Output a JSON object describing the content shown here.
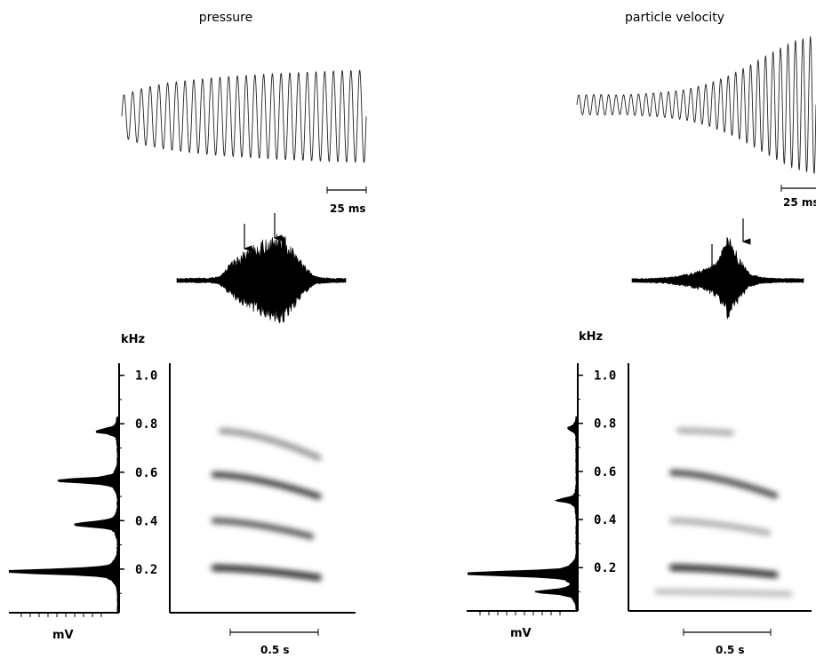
{
  "chart_data": [
    {
      "panel": "left",
      "type": "composite",
      "title": "pressure",
      "oscillogram": {
        "scale_bar_label": "25 ms",
        "cycles": 28,
        "envelope": [
          0.45,
          0.62,
          0.72,
          0.78,
          0.83,
          0.87,
          0.9,
          0.93,
          0.95,
          0.97,
          0.99,
          1.0
        ]
      },
      "amplitude_envelope": {
        "shape": "triangular",
        "arrows": 2,
        "envelope": [
          0.05,
          0.05,
          0.06,
          0.05,
          0.1,
          0.35,
          0.55,
          0.7,
          0.82,
          0.95,
          1.0,
          0.7,
          0.35,
          0.1,
          0.06,
          0.05,
          0.05
        ]
      },
      "spectrum": {
        "ylabel": "kHz",
        "xlabel": "mV",
        "yticks": [
          "0.2",
          "0.4",
          "0.6",
          "0.8",
          "1.0"
        ],
        "ylim": [
          0.02,
          1.05
        ],
        "peaks": [
          {
            "freq": 0.19,
            "amp": 1.0
          },
          {
            "freq": 0.385,
            "amp": 0.42
          },
          {
            "freq": 0.565,
            "amp": 0.5
          },
          {
            "freq": 0.77,
            "amp": 0.2
          }
        ]
      },
      "spectrogram": {
        "scale_bar_label": "0.5 s",
        "time_range": [
          0,
          1.25
        ],
        "harmonics": [
          {
            "t": [
              0.3,
              1.0
            ],
            "f_start": 0.205,
            "f_end": 0.165,
            "intensity": 0.95
          },
          {
            "t": [
              0.3,
              0.95
            ],
            "f_start": 0.4,
            "f_end": 0.335,
            "intensity": 0.75
          },
          {
            "t": [
              0.3,
              1.0
            ],
            "f_start": 0.59,
            "f_end": 0.5,
            "intensity": 0.85
          },
          {
            "t": [
              0.35,
              1.0
            ],
            "f_start": 0.77,
            "f_end": 0.66,
            "intensity": 0.5
          }
        ]
      }
    },
    {
      "panel": "right",
      "type": "composite",
      "title": "particle velocity",
      "oscillogram": {
        "scale_bar_label": "25 ms",
        "cycles": 32,
        "envelope": [
          0.14,
          0.15,
          0.14,
          0.16,
          0.18,
          0.22,
          0.3,
          0.42,
          0.58,
          0.76,
          0.92,
          1.0
        ]
      },
      "amplitude_envelope": {
        "shape": "spike",
        "arrows": 2,
        "envelope": [
          0.05,
          0.05,
          0.06,
          0.07,
          0.1,
          0.15,
          0.2,
          0.28,
          0.45,
          1.0,
          0.5,
          0.15,
          0.08,
          0.06,
          0.05,
          0.05,
          0.05
        ]
      },
      "spectrum": {
        "ylabel": "kHz",
        "xlabel": "mV",
        "yticks": [
          "0.2",
          "0.4",
          "0.6",
          "0.8",
          "1.0"
        ],
        "ylim": [
          0.02,
          1.05
        ],
        "peaks": [
          {
            "freq": 0.175,
            "amp": 1.0
          },
          {
            "freq": 0.1,
            "amp": 0.35
          },
          {
            "freq": 0.48,
            "amp": 0.15
          },
          {
            "freq": 0.78,
            "amp": 0.07
          }
        ]
      },
      "spectrogram": {
        "scale_bar_label": "0.5 s",
        "time_range": [
          0,
          1.25
        ],
        "harmonics": [
          {
            "t": [
              0.3,
              1.0
            ],
            "f_start": 0.2,
            "f_end": 0.17,
            "intensity": 0.95
          },
          {
            "t": [
              0.3,
              0.95
            ],
            "f_start": 0.395,
            "f_end": 0.345,
            "intensity": 0.4
          },
          {
            "t": [
              0.3,
              1.0
            ],
            "f_start": 0.595,
            "f_end": 0.5,
            "intensity": 0.8
          },
          {
            "t": [
              0.35,
              0.7
            ],
            "f_start": 0.77,
            "f_end": 0.76,
            "intensity": 0.4
          },
          {
            "t": [
              0.2,
              1.1
            ],
            "f_start": 0.1,
            "f_end": 0.09,
            "intensity": 0.3
          }
        ]
      }
    }
  ]
}
